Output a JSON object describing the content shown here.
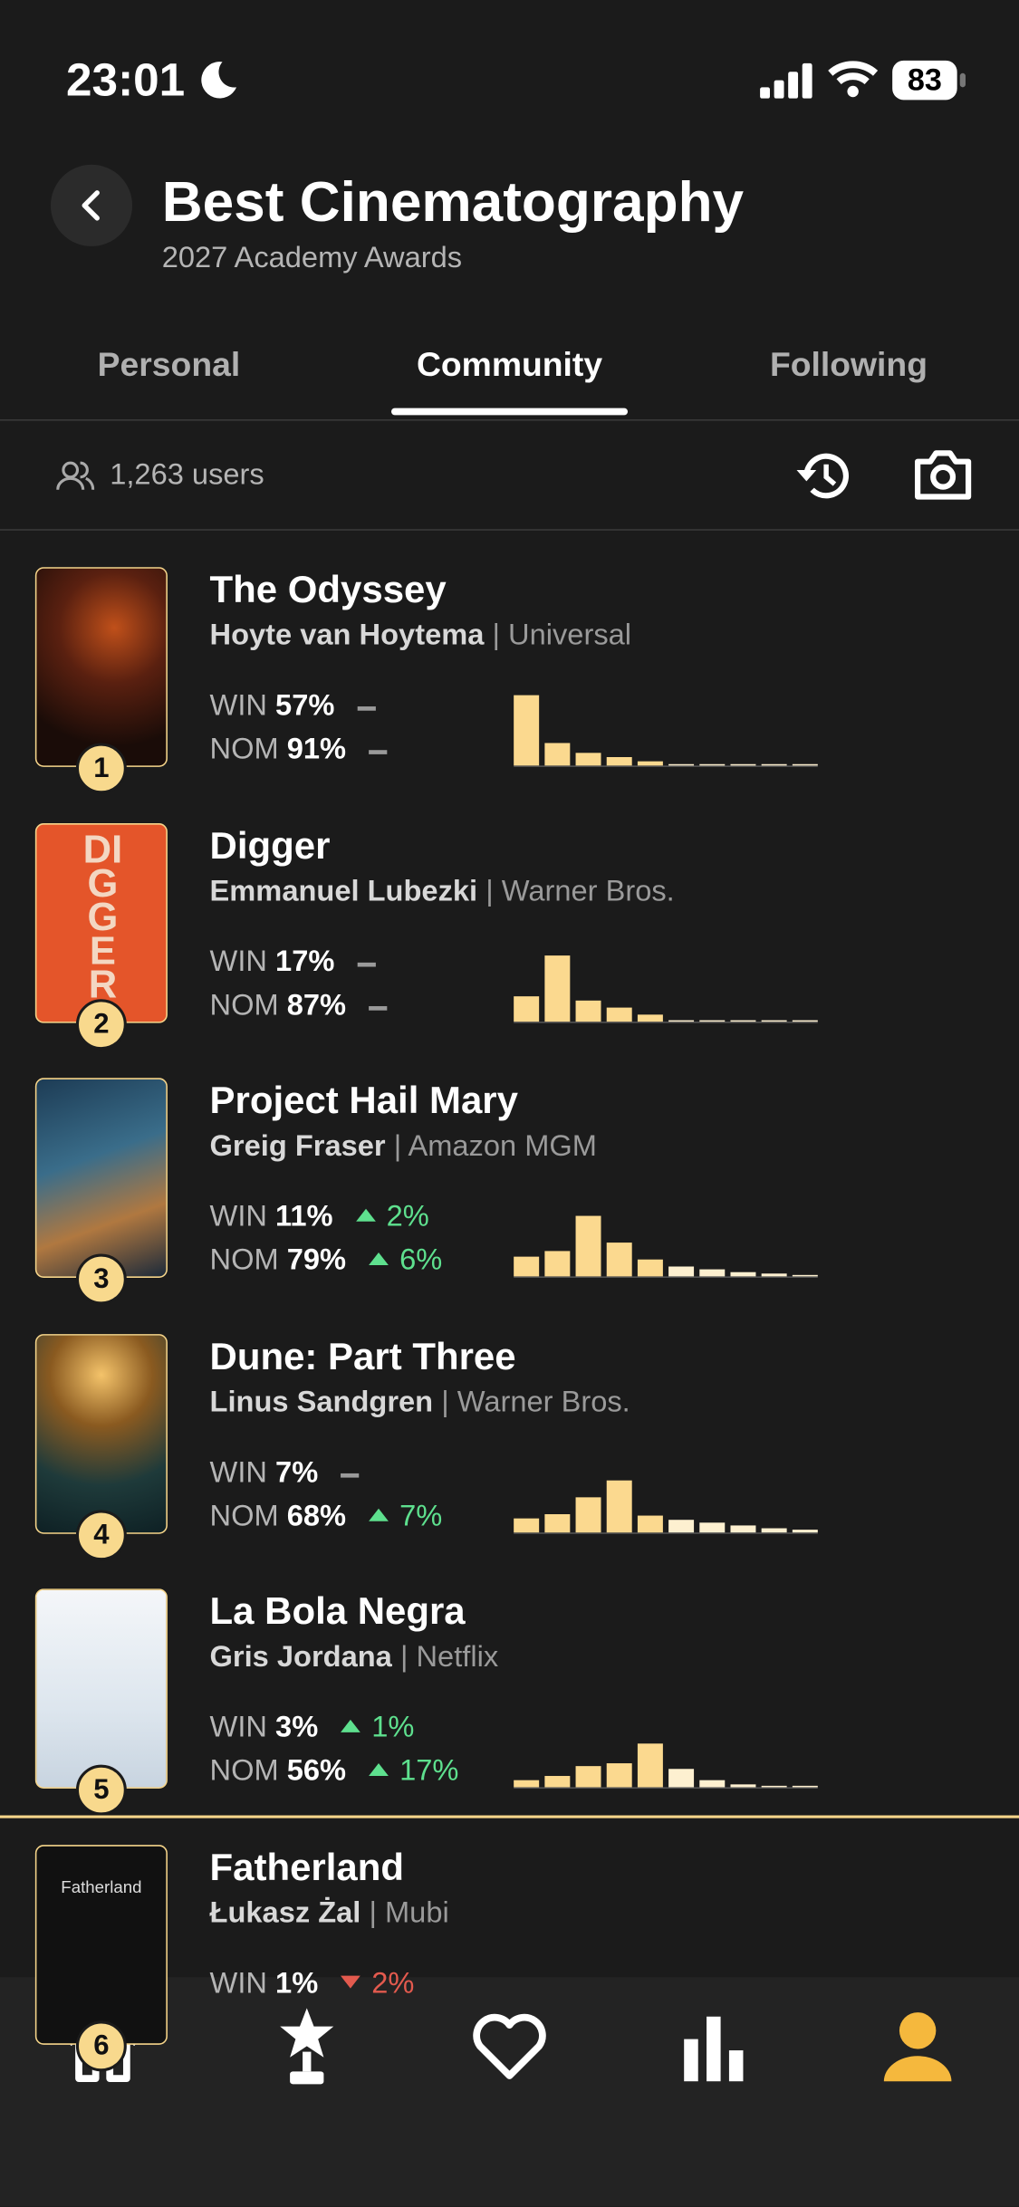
{
  "status": {
    "time": "23:01",
    "battery": "83"
  },
  "header": {
    "title": "Best Cinematography",
    "subtitle": "2027 Academy Awards"
  },
  "tabs": {
    "items": [
      "Personal",
      "Community",
      "Following"
    ],
    "active": 1
  },
  "summary": {
    "users": "1,263 users"
  },
  "labels": {
    "win": "WIN",
    "nom": "NOM"
  },
  "histogram_ylim": [
    0,
    50
  ],
  "items": [
    {
      "rank": "1",
      "title": "The Odyssey",
      "person": "Hoyte van Hoytema",
      "studio": "| Universal",
      "win": "57%",
      "nom": "91%",
      "win_change": null,
      "nom_change": null,
      "histogram": [
        50,
        16,
        9,
        6,
        3,
        1,
        1,
        1,
        1,
        1
      ]
    },
    {
      "rank": "2",
      "title": "Digger",
      "person": "Emmanuel Lubezki",
      "studio": "| Warner Bros.",
      "win": "17%",
      "nom": "87%",
      "win_change": null,
      "nom_change": null,
      "histogram": [
        18,
        47,
        15,
        10,
        5,
        1,
        1,
        1,
        1,
        1
      ],
      "poster_text": "DIGGER"
    },
    {
      "rank": "3",
      "title": "Project Hail Mary",
      "person": "Greig Fraser",
      "studio": "| Amazon MGM",
      "win": "11%",
      "nom": "79%",
      "win_change": {
        "dir": "up",
        "text": "2%"
      },
      "nom_change": {
        "dir": "up",
        "text": "6%"
      },
      "histogram": [
        14,
        18,
        43,
        24,
        12,
        7,
        5,
        3,
        2,
        1
      ]
    },
    {
      "rank": "4",
      "title": "Dune: Part Three",
      "person": "Linus Sandgren",
      "studio": "| Warner Bros.",
      "win": "7%",
      "nom": "68%",
      "win_change": null,
      "nom_change": {
        "dir": "up",
        "text": "7%"
      },
      "histogram": [
        10,
        13,
        25,
        37,
        12,
        9,
        7,
        5,
        3,
        2
      ]
    },
    {
      "rank": "5",
      "title": "La Bola Negra",
      "person": "Gris Jordana",
      "studio": "| Netflix",
      "win": "3%",
      "nom": "56%",
      "win_change": {
        "dir": "up",
        "text": "1%"
      },
      "nom_change": {
        "dir": "up",
        "text": "17%"
      },
      "histogram": [
        5,
        8,
        15,
        17,
        31,
        13,
        5,
        2,
        1,
        1
      ]
    },
    {
      "rank": "6",
      "title": "Fatherland",
      "person": "Łukasz Żal",
      "studio": "| Mubi",
      "win": "1%",
      "nom": null,
      "win_change": {
        "dir": "down",
        "text": "2%"
      },
      "nom_change": null,
      "histogram": null,
      "poster_text": "Fatherland"
    }
  ]
}
